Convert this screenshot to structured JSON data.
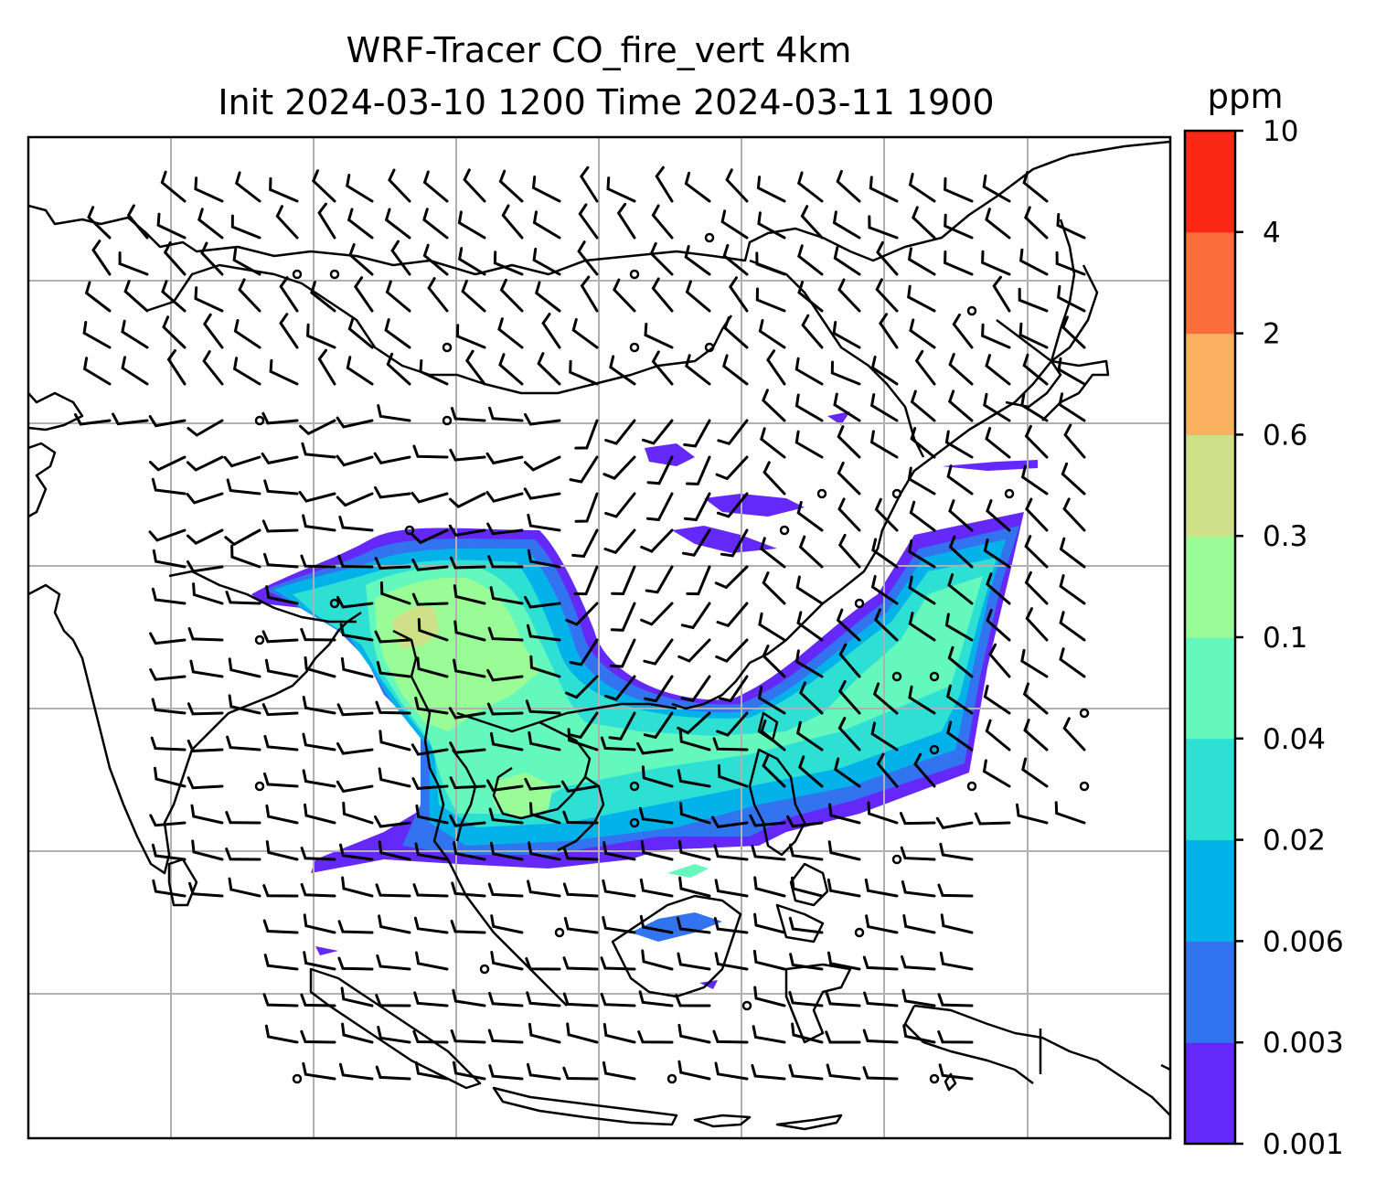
{
  "figure": {
    "title_line1": "WRF-Tracer CO_fire_vert 4km",
    "title_line2": "Init 2024-03-10 1200 Time 2024-03-11 1900"
  },
  "colorbar": {
    "unit": "ppm",
    "levels": [
      "0.001",
      "0.003",
      "0.006",
      "0.02",
      "0.04",
      "0.1",
      "0.3",
      "0.6",
      "2",
      "4",
      "10"
    ],
    "colors": [
      "#6428f8",
      "#3274f0",
      "#04b2ea",
      "#2ee0d4",
      "#64f8bc",
      "#9afc96",
      "#cfe088",
      "#fbb060",
      "#fb6e3c",
      "#fb2816"
    ]
  },
  "map": {
    "gridlines": "on",
    "coastline_color": "#000000",
    "grid_color": "#b0b0b0"
  }
}
